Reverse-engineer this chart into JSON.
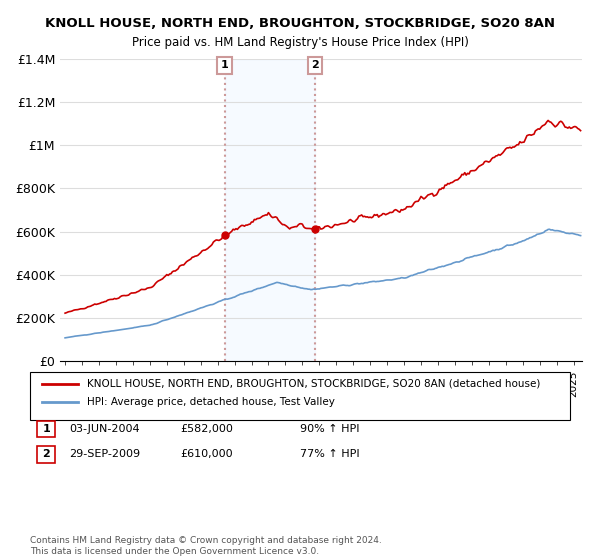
{
  "title1": "KNOLL HOUSE, NORTH END, BROUGHTON, STOCKBRIDGE, SO20 8AN",
  "title2": "Price paid vs. HM Land Registry's House Price Index (HPI)",
  "legend_red": "KNOLL HOUSE, NORTH END, BROUGHTON, STOCKBRIDGE, SO20 8AN (detached house)",
  "legend_blue": "HPI: Average price, detached house, Test Valley",
  "sale1_label": "1",
  "sale1_date": "03-JUN-2004",
  "sale1_price": "£582,000",
  "sale1_hpi": "90% ↑ HPI",
  "sale2_label": "2",
  "sale2_date": "29-SEP-2009",
  "sale2_price": "£610,000",
  "sale2_hpi": "77% ↑ HPI",
  "footnote": "Contains HM Land Registry data © Crown copyright and database right 2024.\nThis data is licensed under the Open Government Licence v3.0.",
  "red_color": "#cc0000",
  "blue_color": "#6699cc",
  "sale_marker_color": "#cc0000",
  "vline_color": "#cc9999",
  "vline_style": ":",
  "shaded_color": "#ddeeff",
  "ylim": [
    0,
    1400000
  ],
  "yticks": [
    0,
    200000,
    400000,
    600000,
    800000,
    1000000,
    1200000,
    1400000
  ],
  "ytick_labels": [
    "£0",
    "£200K",
    "£400K",
    "£600K",
    "£800K",
    "£1M",
    "£1.2M",
    "£1.4M"
  ]
}
